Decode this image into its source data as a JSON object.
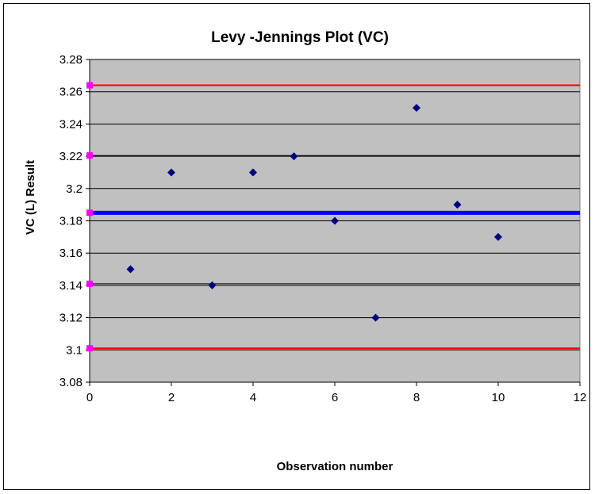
{
  "chart_data": {
    "type": "scatter",
    "title": "Levy -Jennings Plot (VC)",
    "xlabel": "Observation number",
    "ylabel": "VC (L) Result",
    "xlim": [
      0,
      12
    ],
    "ylim": [
      3.08,
      3.28
    ],
    "x_ticks": [
      "0",
      "2",
      "4",
      "6",
      "8",
      "10",
      "12"
    ],
    "y_ticks": [
      "3.08",
      "3.1",
      "3.12",
      "3.14",
      "3.16",
      "3.18",
      "3.2",
      "3.22",
      "3.24",
      "3.26",
      "3.28"
    ],
    "grid": true,
    "plot_background": "#C0C0C0",
    "series": [
      {
        "marker_color": "#00007F",
        "marker": "diamond",
        "points": [
          {
            "x": 1,
            "y": 3.15
          },
          {
            "x": 2,
            "y": 3.21
          },
          {
            "x": 3,
            "y": 3.14
          },
          {
            "x": 4,
            "y": 3.21
          },
          {
            "x": 5,
            "y": 3.22
          },
          {
            "x": 6,
            "y": 3.18
          },
          {
            "x": 7,
            "y": 3.12
          },
          {
            "x": 8,
            "y": 3.25
          },
          {
            "x": 9,
            "y": 3.19
          },
          {
            "x": 10,
            "y": 3.17
          }
        ]
      }
    ],
    "reference_lines": [
      {
        "y": 3.264,
        "color": "#FF0000",
        "width": 2
      },
      {
        "y": 3.2205,
        "color": "#000000",
        "width": 1
      },
      {
        "y": 3.185,
        "color": "#0000FF",
        "width": 5
      },
      {
        "y": 3.141,
        "color": "#000000",
        "width": 1
      },
      {
        "y": 3.101,
        "color": "#FF0000",
        "width": 2
      }
    ],
    "axis_markers": {
      "color": "#FF00FF",
      "x": 0,
      "y": [
        3.264,
        3.2205,
        3.185,
        3.141,
        3.101
      ]
    }
  }
}
